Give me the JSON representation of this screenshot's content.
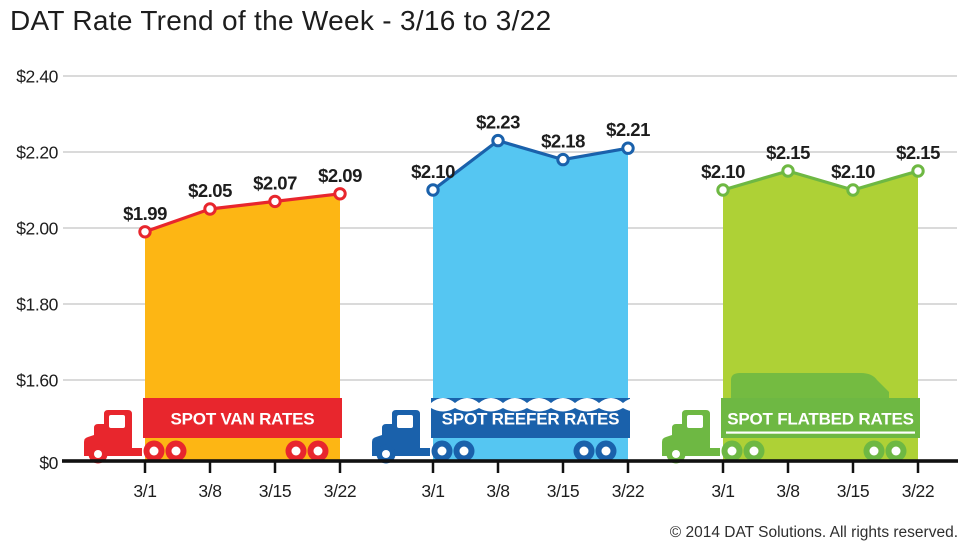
{
  "title": "DAT Rate Trend of the Week - 3/16 to 3/22",
  "footer": "© 2014 DAT Solutions. All rights reserved.",
  "colors": {
    "text": "#1d1d1d",
    "gridline": "#cdcdcd",
    "axis": "#111111",
    "background": "#ffffff"
  },
  "chart_data": {
    "type": "area",
    "title": "DAT Rate Trend of the Week - 3/16 to 3/22",
    "x_labels": [
      "3/1",
      "3/8",
      "3/15",
      "3/22"
    ],
    "y_axis": {
      "ticks": [
        {
          "label": "$2.40",
          "value": 2.4
        },
        {
          "label": "$2.20",
          "value": 2.2
        },
        {
          "label": "$2.00",
          "value": 2.0
        },
        {
          "label": "$1.80",
          "value": 1.8
        },
        {
          "label": "$1.60",
          "value": 1.6
        },
        {
          "label": "$0",
          "value": 0
        }
      ],
      "broken_axis": true
    },
    "grid": true,
    "legend_position": "truck banners inside chart",
    "series": [
      {
        "id": "van",
        "name": "SPOT VAN RATES",
        "icon": "van-truck-icon",
        "values": [
          1.99,
          2.05,
          2.07,
          2.09
        ],
        "point_labels": [
          "$1.99",
          "$2.05",
          "$2.07",
          "$2.09"
        ],
        "line_color": "#e8262d",
        "fill_color": "#fdb614",
        "banner_color": "#e8262d"
      },
      {
        "id": "reefer",
        "name": "SPOT REEFER RATES",
        "icon": "reefer-truck-icon",
        "values": [
          2.1,
          2.23,
          2.18,
          2.21
        ],
        "point_labels": [
          "$2.10",
          "$2.23",
          "$2.18",
          "$2.21"
        ],
        "line_color": "#1a61ab",
        "fill_color": "#55c6f2",
        "banner_color": "#1a61ab"
      },
      {
        "id": "flatbed",
        "name": "SPOT FLATBED RATES",
        "icon": "flatbed-truck-icon",
        "values": [
          2.1,
          2.15,
          2.1,
          2.15
        ],
        "point_labels": [
          "$2.10",
          "$2.15",
          "$2.10",
          "$2.15"
        ],
        "line_color": "#6eb843",
        "fill_color": "#aed136",
        "banner_color": "#6eb843"
      }
    ]
  }
}
